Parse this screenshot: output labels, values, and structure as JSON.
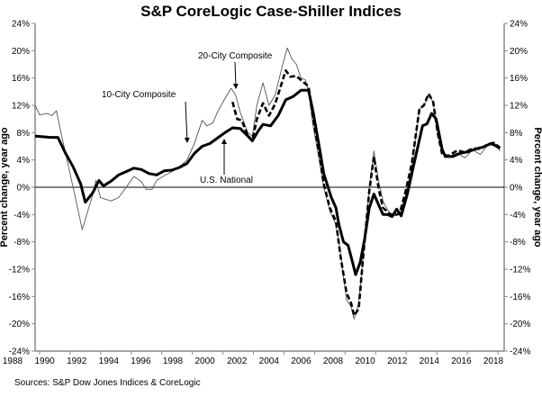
{
  "chart_data": {
    "type": "line",
    "title": "S&P CoreLogic Case-Shiller Indices",
    "ylabel_left": "Percent change, year ago",
    "ylabel_right": "Percent change, year ago",
    "source": "Sources: S&P Dow Jones Indices & CoreLogic",
    "ylim": [
      -24,
      24
    ],
    "xlim": [
      1988,
      2018.7
    ],
    "y_ticks": [
      "24%",
      "20%",
      "16%",
      "12%",
      "8%",
      "4%",
      "0%",
      "-4%",
      "-8%",
      "-12%",
      "-16%",
      "-20%",
      "-24%"
    ],
    "y_tick_values": [
      24,
      20,
      16,
      12,
      8,
      4,
      0,
      -4,
      -8,
      -12,
      -16,
      -20,
      -24
    ],
    "x_tick_labels": [
      "1988",
      "1990",
      "1992",
      "1994",
      "1996",
      "1998",
      "2000",
      "2002",
      "2004",
      "2006",
      "2008",
      "2010",
      "2012",
      "2014",
      "2016",
      "2018"
    ],
    "grid": false,
    "annotations": [
      {
        "text": "20-City Composite",
        "series": "20-City Composite"
      },
      {
        "text": "10-City Composite",
        "series": "10-City Composite"
      },
      {
        "text": "U.S. National",
        "series": "U.S. National"
      }
    ],
    "series": [
      {
        "name": "U.S. National",
        "style": "thick",
        "x": [
          1988.0,
          1989.0,
          1989.5,
          1990.0,
          1990.5,
          1991.0,
          1991.3,
          1991.8,
          1992.2,
          1992.5,
          1993.0,
          1993.5,
          1994.0,
          1994.5,
          1995.0,
          1995.5,
          1996.0,
          1996.5,
          1997.0,
          1997.5,
          1998.0,
          1998.5,
          1999.0,
          1999.5,
          2000.0,
          2000.5,
          2001.0,
          2001.5,
          2002.0,
          2002.3,
          2002.7,
          2003.0,
          2003.5,
          2004.0,
          2004.5,
          2005.0,
          2005.5,
          2006.0,
          2006.3,
          2006.7,
          2007.0,
          2007.5,
          2007.8,
          2008.0,
          2008.3,
          2008.6,
          2008.9,
          2009.1,
          2009.4,
          2009.7,
          2010.0,
          2010.3,
          2010.6,
          2010.9,
          2011.2,
          2011.5,
          2011.8,
          2012.1,
          2012.5,
          2013.0,
          2013.5,
          2013.8,
          2014.1,
          2014.4,
          2014.8,
          2015.0,
          2015.5,
          2016.0,
          2016.5,
          2017.0,
          2017.5,
          2018.0,
          2018.3,
          2018.6
        ],
        "y": [
          7.5,
          7.3,
          7.3,
          5.0,
          3.0,
          0.5,
          -2.2,
          -0.8,
          1.0,
          0.2,
          0.9,
          1.8,
          2.3,
          2.8,
          2.6,
          2.0,
          1.8,
          2.4,
          2.5,
          2.9,
          3.5,
          5.0,
          6.0,
          6.4,
          7.2,
          8.0,
          8.7,
          8.6,
          7.5,
          6.8,
          8.3,
          9.2,
          9.0,
          10.5,
          12.8,
          13.3,
          14.2,
          14.2,
          11.0,
          6.0,
          2.0,
          -1.5,
          -3.0,
          -5.5,
          -8.0,
          -8.5,
          -11.0,
          -12.8,
          -11.0,
          -7.5,
          -3.0,
          -1.0,
          -2.5,
          -4.0,
          -4.0,
          -4.3,
          -3.2,
          -4.2,
          -1.0,
          4.0,
          9.0,
          9.3,
          10.8,
          10.0,
          5.5,
          4.5,
          4.5,
          5.0,
          5.2,
          5.6,
          5.9,
          6.4,
          6.1,
          5.7
        ]
      },
      {
        "name": "10-City Composite",
        "style": "thin",
        "x": [
          1988.0,
          1988.3,
          1988.8,
          1989.1,
          1989.4,
          1989.8,
          1990.3,
          1990.8,
          1991.1,
          1991.4,
          1991.8,
          1992.0,
          1992.3,
          1992.7,
          1993.0,
          1993.5,
          1994.0,
          1994.5,
          1995.0,
          1995.3,
          1995.7,
          1996.0,
          1996.5,
          1997.0,
          1997.5,
          1998.0,
          1998.5,
          1999.0,
          1999.3,
          1999.7,
          2000.0,
          2000.5,
          2000.9,
          2001.2,
          2001.5,
          2002.0,
          2002.3,
          2002.6,
          2003.0,
          2003.4,
          2003.8,
          2004.3,
          2004.6,
          2004.9,
          2005.2,
          2005.5,
          2005.8,
          2006.0,
          2006.3,
          2006.7,
          2007.0,
          2007.4,
          2007.8,
          2008.0,
          2008.5,
          2008.8,
          2009.0,
          2009.3,
          2009.6,
          2010.0,
          2010.3,
          2010.6,
          2010.9,
          2011.3,
          2011.6,
          2012.0,
          2012.4,
          2012.8,
          2013.3,
          2013.6,
          2013.9,
          2014.2,
          2014.5,
          2014.8,
          2015.2,
          2015.8,
          2016.3,
          2016.8,
          2017.3,
          2017.8,
          2018.2,
          2018.6
        ],
        "y": [
          12.0,
          10.6,
          10.8,
          10.5,
          11.2,
          7.0,
          2.0,
          -3.0,
          -6.2,
          -4.0,
          -1.0,
          1.0,
          -1.5,
          -1.8,
          -2.0,
          -1.5,
          0.0,
          1.6,
          0.8,
          -0.3,
          -0.3,
          1.0,
          1.7,
          2.3,
          3.0,
          4.0,
          6.5,
          9.8,
          9.0,
          9.4,
          11.0,
          13.0,
          14.5,
          13.5,
          11.0,
          8.0,
          7.5,
          12.0,
          15.3,
          12.0,
          13.5,
          18.0,
          20.4,
          18.8,
          18.0,
          16.0,
          15.7,
          14.0,
          9.0,
          4.0,
          0.0,
          -3.5,
          -5.5,
          -8.0,
          -16.5,
          -17.5,
          -19.3,
          -17.0,
          -10.0,
          0.0,
          5.3,
          1.0,
          -2.0,
          -3.7,
          -4.2,
          -4.0,
          -1.0,
          3.0,
          11.5,
          12.0,
          13.5,
          12.5,
          8.0,
          5.0,
          4.5,
          5.0,
          4.3,
          5.5,
          4.8,
          6.2,
          6.6,
          5.3
        ]
      },
      {
        "name": "20-City Composite",
        "style": "dashed",
        "x": [
          2001.0,
          2001.3,
          2001.6,
          2002.0,
          2002.3,
          2002.6,
          2003.0,
          2003.4,
          2003.8,
          2004.2,
          2004.5,
          2004.8,
          2005.2,
          2005.6,
          2006.0,
          2006.3,
          2006.7,
          2007.0,
          2007.4,
          2007.8,
          2008.1,
          2008.5,
          2008.8,
          2009.0,
          2009.3,
          2009.6,
          2010.0,
          2010.3,
          2010.6,
          2010.9,
          2011.3,
          2011.6,
          2012.0,
          2012.4,
          2012.8,
          2013.3,
          2013.6,
          2013.9,
          2014.2,
          2014.5,
          2014.8,
          2015.2,
          2015.8,
          2016.3,
          2016.8,
          2017.3,
          2017.8,
          2018.2,
          2018.6
        ],
        "y": [
          12.5,
          10.0,
          9.8,
          7.6,
          6.8,
          10.0,
          12.3,
          10.5,
          12.2,
          15.0,
          17.1,
          16.2,
          16.3,
          15.5,
          14.8,
          10.0,
          5.0,
          0.5,
          -3.0,
          -5.0,
          -10.0,
          -15.5,
          -17.0,
          -18.8,
          -17.8,
          -10.0,
          -0.5,
          4.5,
          0.0,
          -3.0,
          -3.8,
          -4.2,
          -3.8,
          -0.5,
          3.5,
          11.5,
          12.0,
          13.7,
          12.5,
          8.0,
          4.8,
          4.6,
          5.4,
          5.1,
          5.7,
          5.6,
          6.3,
          6.5,
          5.8
        ]
      }
    ]
  }
}
